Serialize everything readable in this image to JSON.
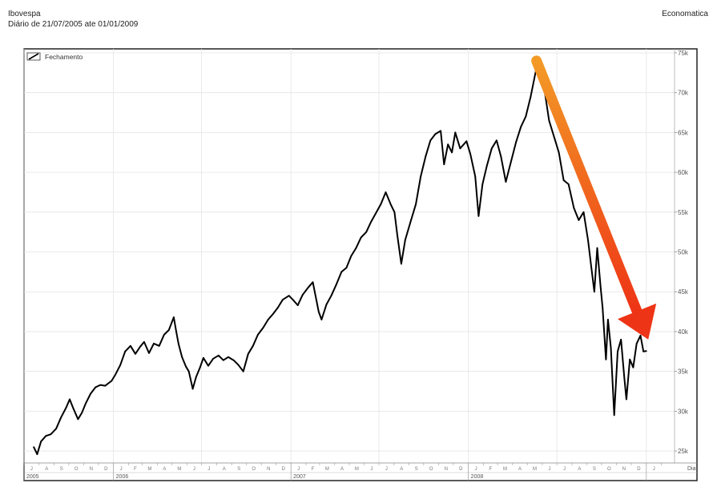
{
  "header": {
    "title": "Ibovespa",
    "subtitle": "Diário de 21/07/2005 ate 01/01/2009",
    "source": "Economatica"
  },
  "chart_data": {
    "type": "line",
    "title": "Ibovespa",
    "subtitle": "Diário de 21/07/2005 ate 01/01/2009",
    "legend": {
      "label": "Fechamento",
      "position": "top-left"
    },
    "x_axis_label": "Dia",
    "y_axis": {
      "min": 23500,
      "max": 75500,
      "side": "right",
      "ticks": [
        25000,
        30000,
        35000,
        40000,
        45000,
        50000,
        55000,
        60000,
        65000,
        70000,
        75000
      ],
      "tick_labels": [
        "25k",
        "30k",
        "35k",
        "40k",
        "45k",
        "50k",
        "55k",
        "60k",
        "65k",
        "70k",
        "75k"
      ]
    },
    "x_range": [
      "2005-07-01",
      "2009-02-28"
    ],
    "years": [
      {
        "label": "2005",
        "start": "2005-07-01",
        "end": "2006-01-01"
      },
      {
        "label": "2006",
        "start": "2006-01-01",
        "end": "2007-01-01"
      },
      {
        "label": "2007",
        "start": "2007-01-01",
        "end": "2008-01-01"
      },
      {
        "label": "2008",
        "start": "2008-01-01",
        "end": "2009-01-01"
      }
    ],
    "month_letters": [
      "J",
      "F",
      "M",
      "A",
      "M",
      "J",
      "J",
      "A",
      "S",
      "O",
      "N",
      "D"
    ],
    "grid": true,
    "series": [
      {
        "name": "Fechamento",
        "points": [
          [
            "2005-07-21",
            25500
          ],
          [
            "2005-07-28",
            24600
          ],
          [
            "2005-08-05",
            26200
          ],
          [
            "2005-08-15",
            26900
          ],
          [
            "2005-08-25",
            27100
          ],
          [
            "2005-09-05",
            27800
          ],
          [
            "2005-09-15",
            29200
          ],
          [
            "2005-09-26",
            30500
          ],
          [
            "2005-10-03",
            31500
          ],
          [
            "2005-10-10",
            30400
          ],
          [
            "2005-10-20",
            29000
          ],
          [
            "2005-10-28",
            29800
          ],
          [
            "2005-11-05",
            31000
          ],
          [
            "2005-11-15",
            32200
          ],
          [
            "2005-11-25",
            33000
          ],
          [
            "2005-12-05",
            33300
          ],
          [
            "2005-12-15",
            33200
          ],
          [
            "2005-12-28",
            33800
          ],
          [
            "2006-01-05",
            34600
          ],
          [
            "2006-01-15",
            35800
          ],
          [
            "2006-01-25",
            37500
          ],
          [
            "2006-02-05",
            38200
          ],
          [
            "2006-02-15",
            37200
          ],
          [
            "2006-02-25",
            38100
          ],
          [
            "2006-03-05",
            38700
          ],
          [
            "2006-03-15",
            37300
          ],
          [
            "2006-03-25",
            38500
          ],
          [
            "2006-04-05",
            38200
          ],
          [
            "2006-04-15",
            39600
          ],
          [
            "2006-04-25",
            40200
          ],
          [
            "2006-05-05",
            41800
          ],
          [
            "2006-05-10",
            40000
          ],
          [
            "2006-05-15",
            38400
          ],
          [
            "2006-05-22",
            36800
          ],
          [
            "2006-05-30",
            35600
          ],
          [
            "2006-06-05",
            35000
          ],
          [
            "2006-06-13",
            32800
          ],
          [
            "2006-06-20",
            34300
          ],
          [
            "2006-06-28",
            35500
          ],
          [
            "2006-07-05",
            36700
          ],
          [
            "2006-07-15",
            35700
          ],
          [
            "2006-07-25",
            36600
          ],
          [
            "2006-08-05",
            37000
          ],
          [
            "2006-08-15",
            36400
          ],
          [
            "2006-08-25",
            36800
          ],
          [
            "2006-09-05",
            36400
          ],
          [
            "2006-09-15",
            35800
          ],
          [
            "2006-09-25",
            35000
          ],
          [
            "2006-10-05",
            37200
          ],
          [
            "2006-10-15",
            38200
          ],
          [
            "2006-10-25",
            39600
          ],
          [
            "2006-11-05",
            40500
          ],
          [
            "2006-11-15",
            41500
          ],
          [
            "2006-11-25",
            42200
          ],
          [
            "2006-12-05",
            43000
          ],
          [
            "2006-12-15",
            44000
          ],
          [
            "2006-12-28",
            44500
          ],
          [
            "2007-01-05",
            44000
          ],
          [
            "2007-01-15",
            43300
          ],
          [
            "2007-01-25",
            44600
          ],
          [
            "2007-02-05",
            45500
          ],
          [
            "2007-02-15",
            46200
          ],
          [
            "2007-02-27",
            42500
          ],
          [
            "2007-03-05",
            41500
          ],
          [
            "2007-03-15",
            43400
          ],
          [
            "2007-03-25",
            44500
          ],
          [
            "2007-04-05",
            46000
          ],
          [
            "2007-04-15",
            47500
          ],
          [
            "2007-04-25",
            48000
          ],
          [
            "2007-05-05",
            49500
          ],
          [
            "2007-05-15",
            50500
          ],
          [
            "2007-05-25",
            51800
          ],
          [
            "2007-06-05",
            52500
          ],
          [
            "2007-06-15",
            53800
          ],
          [
            "2007-06-25",
            54900
          ],
          [
            "2007-07-05",
            56000
          ],
          [
            "2007-07-15",
            57500
          ],
          [
            "2007-07-25",
            56000
          ],
          [
            "2007-08-02",
            55000
          ],
          [
            "2007-08-08",
            52000
          ],
          [
            "2007-08-16",
            48500
          ],
          [
            "2007-08-24",
            51500
          ],
          [
            "2007-09-05",
            54000
          ],
          [
            "2007-09-15",
            56000
          ],
          [
            "2007-09-25",
            59500
          ],
          [
            "2007-10-05",
            62000
          ],
          [
            "2007-10-15",
            64000
          ],
          [
            "2007-10-25",
            64800
          ],
          [
            "2007-11-05",
            65200
          ],
          [
            "2007-11-12",
            61000
          ],
          [
            "2007-11-20",
            63500
          ],
          [
            "2007-11-28",
            62500
          ],
          [
            "2007-12-05",
            65000
          ],
          [
            "2007-12-15",
            63000
          ],
          [
            "2007-12-28",
            63900
          ],
          [
            "2008-01-05",
            62300
          ],
          [
            "2008-01-15",
            59500
          ],
          [
            "2008-01-22",
            54500
          ],
          [
            "2008-01-30",
            58500
          ],
          [
            "2008-02-08",
            60800
          ],
          [
            "2008-02-18",
            63000
          ],
          [
            "2008-02-28",
            64000
          ],
          [
            "2008-03-08",
            62000
          ],
          [
            "2008-03-18",
            58800
          ],
          [
            "2008-03-28",
            61200
          ],
          [
            "2008-04-08",
            63800
          ],
          [
            "2008-04-18",
            65700
          ],
          [
            "2008-04-28",
            67000
          ],
          [
            "2008-05-08",
            69500
          ],
          [
            "2008-05-20",
            73100
          ],
          [
            "2008-05-28",
            71500
          ],
          [
            "2008-06-05",
            70500
          ],
          [
            "2008-06-15",
            66500
          ],
          [
            "2008-06-25",
            64500
          ],
          [
            "2008-07-05",
            62500
          ],
          [
            "2008-07-15",
            59000
          ],
          [
            "2008-07-25",
            58500
          ],
          [
            "2008-08-05",
            55500
          ],
          [
            "2008-08-15",
            54000
          ],
          [
            "2008-08-25",
            55000
          ],
          [
            "2008-09-03",
            51500
          ],
          [
            "2008-09-10",
            48000
          ],
          [
            "2008-09-16",
            45000
          ],
          [
            "2008-09-22",
            50500
          ],
          [
            "2008-09-29",
            45500
          ],
          [
            "2008-10-03",
            43000
          ],
          [
            "2008-10-10",
            36500
          ],
          [
            "2008-10-14",
            41500
          ],
          [
            "2008-10-20",
            38000
          ],
          [
            "2008-10-27",
            29500
          ],
          [
            "2008-11-03",
            37500
          ],
          [
            "2008-11-10",
            39000
          ],
          [
            "2008-11-17",
            34000
          ],
          [
            "2008-11-21",
            31500
          ],
          [
            "2008-11-28",
            36500
          ],
          [
            "2008-12-05",
            35500
          ],
          [
            "2008-12-12",
            38500
          ],
          [
            "2008-12-20",
            39500
          ],
          [
            "2008-12-26",
            37500
          ],
          [
            "2009-01-01",
            37550
          ]
        ]
      }
    ],
    "annotation": {
      "type": "arrow",
      "from": [
        "2008-05-20",
        74000
      ],
      "to": [
        "2009-01-05",
        39000
      ],
      "gradient": [
        "#f39a26",
        "#ee3416"
      ]
    }
  }
}
